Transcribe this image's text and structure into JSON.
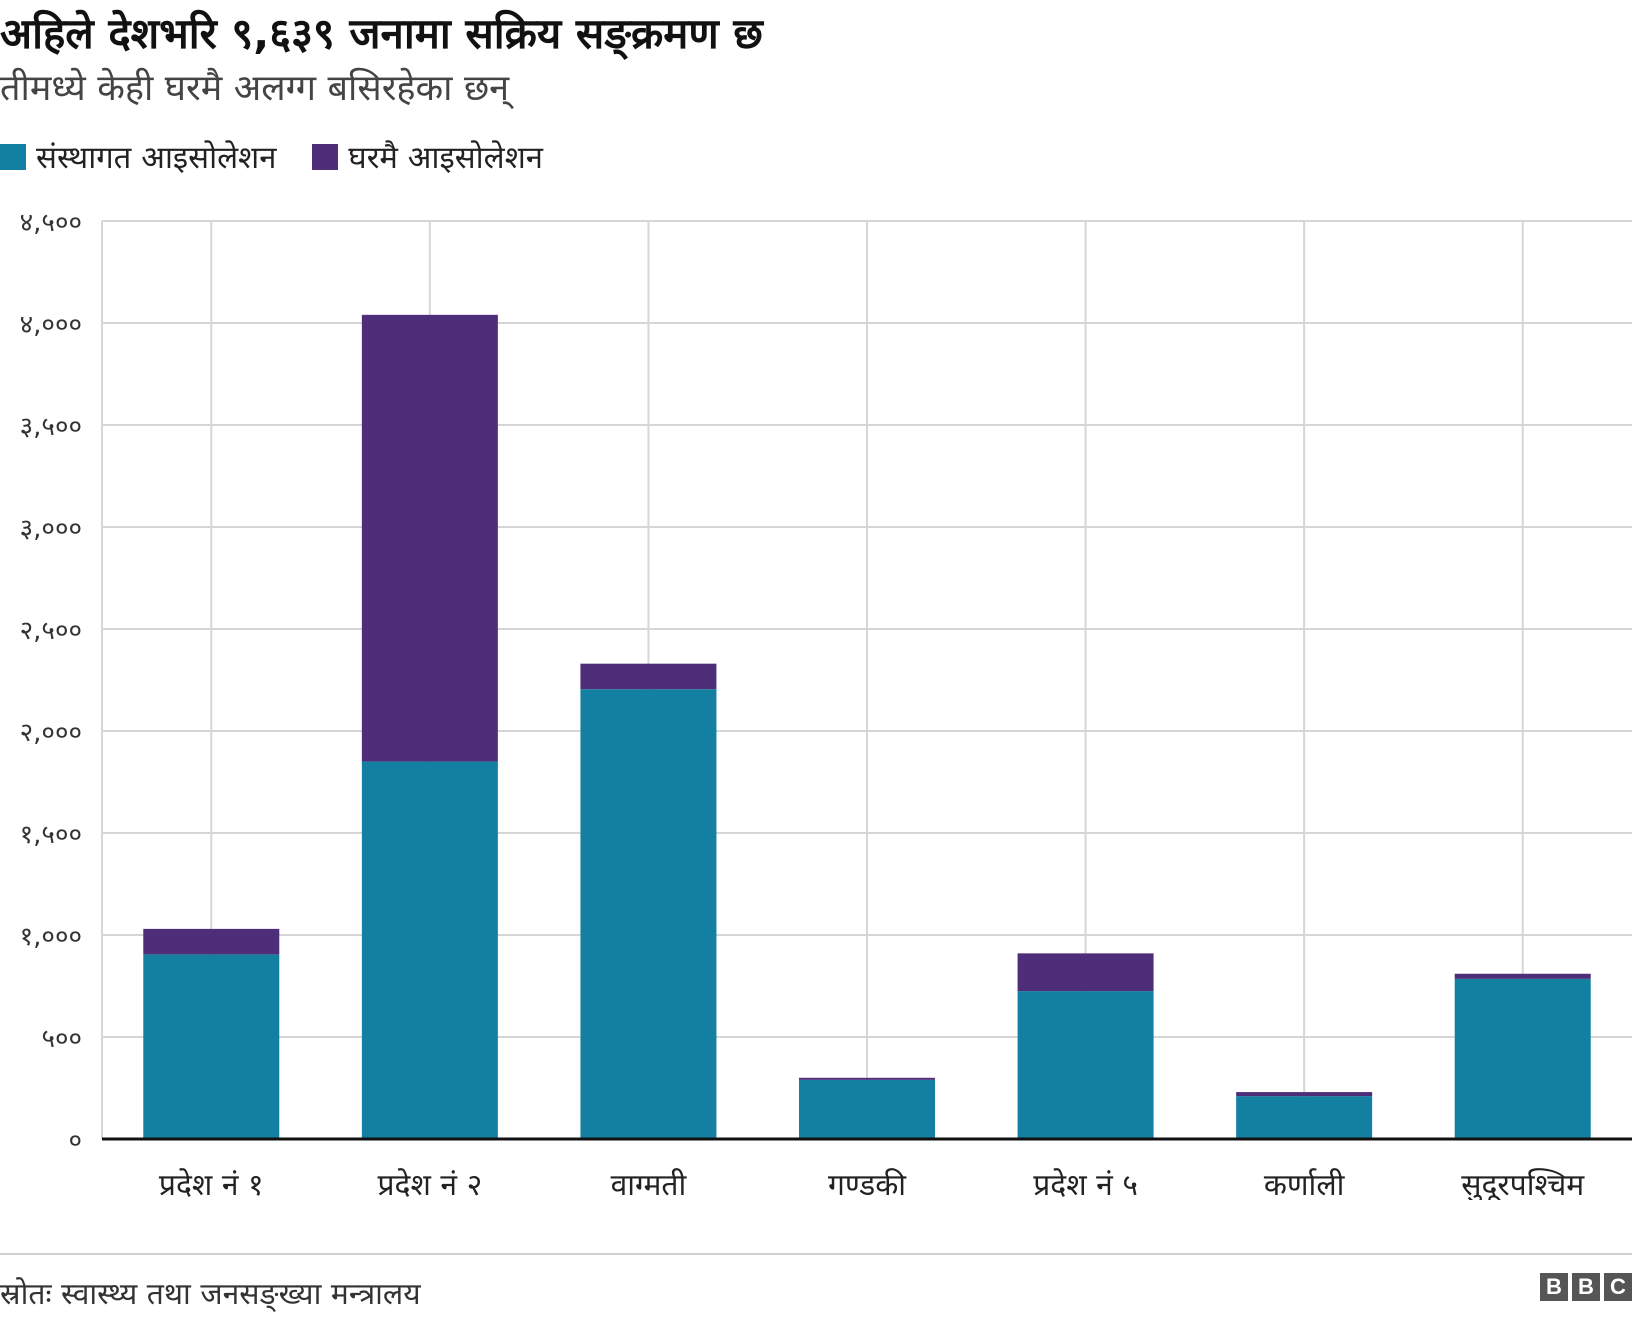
{
  "header": {
    "title": "अहिले देशभरि ९,६३९ जनामा सक्रिय सङ्क्रमण छ",
    "subtitle": "तीमध्ये केही घरमै अलग्ग बसिरहेका छन्"
  },
  "legend": {
    "items": [
      {
        "label": "संस्थागत आइसोलेशन",
        "color": "#1380a1"
      },
      {
        "label": "घरमै आइसोलेशन",
        "color": "#4e2e78"
      }
    ]
  },
  "chart_data": {
    "type": "bar",
    "stacked": true,
    "categories": [
      "प्रदेश नं १",
      "प्रदेश नं २",
      "वाग्मती",
      "गण्डकी",
      "प्रदेश नं ५",
      "कर्णाली",
      "सुदूरपश्चिम"
    ],
    "series": [
      {
        "name": "संस्थागत आइसोलेशन",
        "color": "#1380a1",
        "values": [
          905,
          1850,
          2205,
          290,
          725,
          210,
          785
        ]
      },
      {
        "name": "घरमै आइसोलेशन",
        "color": "#4e2e78",
        "values": [
          125,
          2190,
          125,
          10,
          185,
          20,
          25
        ]
      }
    ],
    "ylim": [
      0,
      4500
    ],
    "yticks": [
      0,
      500,
      1000,
      1500,
      2000,
      2500,
      3000,
      3500,
      4000,
      4500
    ],
    "ytick_labels": [
      "०",
      "५००",
      "१,०००",
      "१,५००",
      "२,०००",
      "२,५००",
      "३,०००",
      "३,५००",
      "४,०००",
      "४,५००"
    ],
    "grid": true,
    "legend_position": "top-left"
  },
  "footer": {
    "source": "स्रोतः स्वास्थ्य तथा जनसङ्ख्या मन्त्रालय",
    "logo_text": "BBC"
  }
}
